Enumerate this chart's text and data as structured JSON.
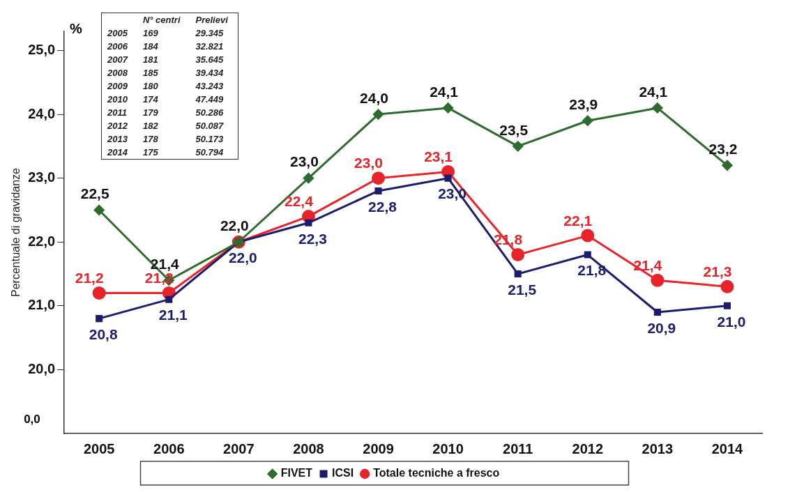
{
  "chart_data": {
    "type": "line",
    "ylabel": "Percentuale di gravidanze",
    "categories": [
      "2005",
      "2006",
      "2007",
      "2008",
      "2009",
      "2010",
      "2011",
      "2012",
      "2013",
      "2014"
    ],
    "series": [
      {
        "name": "FIVET",
        "color": "#2e6b2e",
        "marker": "diamond",
        "values": [
          22.5,
          21.4,
          22.0,
          23.0,
          24.0,
          24.1,
          23.5,
          23.9,
          24.1,
          23.2
        ],
        "value_labels": [
          "22,5",
          "21,4",
          "22,0",
          "23,0",
          "24,0",
          "24,1",
          "23,5",
          "23,9",
          "24,1",
          "23,2"
        ]
      },
      {
        "name": "ICSI",
        "color": "#1c1c6e",
        "marker": "square",
        "values": [
          20.8,
          21.1,
          22.0,
          22.3,
          22.8,
          23.0,
          21.5,
          21.8,
          20.9,
          21.0
        ],
        "value_labels": [
          "20,8",
          "21,1",
          "22,0",
          "22,3",
          "22,8",
          "23,0",
          "21,5",
          "21,8",
          "20,9",
          "21,0"
        ]
      },
      {
        "name": "Totale tecniche a fresco",
        "color": "#e8232a",
        "marker": "circle",
        "values": [
          21.2,
          21.2,
          22.0,
          22.4,
          23.0,
          23.1,
          21.8,
          22.1,
          21.4,
          21.3
        ],
        "value_labels": [
          "21,2",
          "21,2",
          null,
          "22,4",
          "23,0",
          "23,1",
          "21,8",
          "22,1",
          "21,4",
          "21,3"
        ]
      }
    ],
    "ylim": [
      19.0,
      25.3
    ],
    "yticks": [
      {
        "value": 20,
        "label": "20,0"
      },
      {
        "value": 21,
        "label": "21,0"
      },
      {
        "value": 22,
        "label": "22,0"
      },
      {
        "value": 23,
        "label": "23,0"
      },
      {
        "value": 24,
        "label": "24,0"
      },
      {
        "value": 25,
        "label": "25,0"
      }
    ],
    "grid": false,
    "legend": "bottom",
    "annotations": [
      "%",
      "0,0",
      "\tN° centri\tPrelievi",
      "2005\t169\t29.345",
      "2006\t184\t32.821",
      "2007\t181\t35.645",
      "2008\t185\t39.434",
      "2009\t180\t43.243",
      "2010\t174\t47.449",
      "2011\t179\t50.286",
      "2012\t182\t50.087",
      "2013\t178\t50.173",
      "2014\t175\t50.794"
    ]
  }
}
